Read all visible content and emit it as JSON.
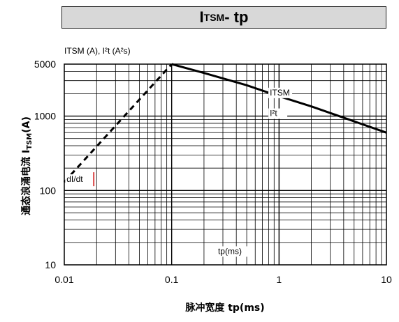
{
  "chart_data": {
    "type": "line",
    "title_main": "I",
    "title_sub": "TSM",
    "title_rest": " - tp",
    "y_axis_caption": "ITSM (A), I²t (A²s)",
    "ylabel_main": "通态浪涌电流 I",
    "ylabel_sub": "TSM",
    "ylabel_rest": "(A)",
    "xlabel": "脉冲宽度 tp(ms)",
    "x_scale": "log",
    "y_scale": "log",
    "xlim": [
      0.01,
      10
    ],
    "ylim": [
      10,
      5000
    ],
    "grid": true,
    "x_ticks": [
      {
        "value": 0.01,
        "label": "0.01"
      },
      {
        "value": 0.1,
        "label": "0.1"
      },
      {
        "value": 1,
        "label": "1"
      },
      {
        "value": 10,
        "label": "10"
      }
    ],
    "y_ticks": [
      {
        "value": 10,
        "label": "10"
      },
      {
        "value": 100,
        "label": "100"
      },
      {
        "value": 1000,
        "label": "1000"
      },
      {
        "value": 5000,
        "label": "5000"
      }
    ],
    "series": [
      {
        "name": "ITSM",
        "style": "solid",
        "points": [
          {
            "x": 0.1,
            "y": 5000
          },
          {
            "x": 0.2,
            "y": 3800
          },
          {
            "x": 0.5,
            "y": 2600
          },
          {
            "x": 1,
            "y": 1850
          },
          {
            "x": 2,
            "y": 1350
          },
          {
            "x": 5,
            "y": 850
          },
          {
            "x": 10,
            "y": 600
          }
        ]
      },
      {
        "name": "dI/dt",
        "style": "dashed",
        "points": [
          {
            "x": 0.01,
            "y": 130
          },
          {
            "x": 0.1,
            "y": 5000
          }
        ]
      }
    ],
    "annotations": [
      {
        "text": "ITSM",
        "x": 0.82,
        "y": 1900
      },
      {
        "text": "I²t",
        "x": 0.82,
        "y": 1000
      },
      {
        "text": "dI/dt",
        "x": 0.0105,
        "y": 130
      },
      {
        "text": "tp(ms)",
        "x": 0.27,
        "y": 14
      }
    ],
    "colors": {
      "line": "#000000",
      "grid": "#000000",
      "marker": "#cc0000"
    }
  }
}
